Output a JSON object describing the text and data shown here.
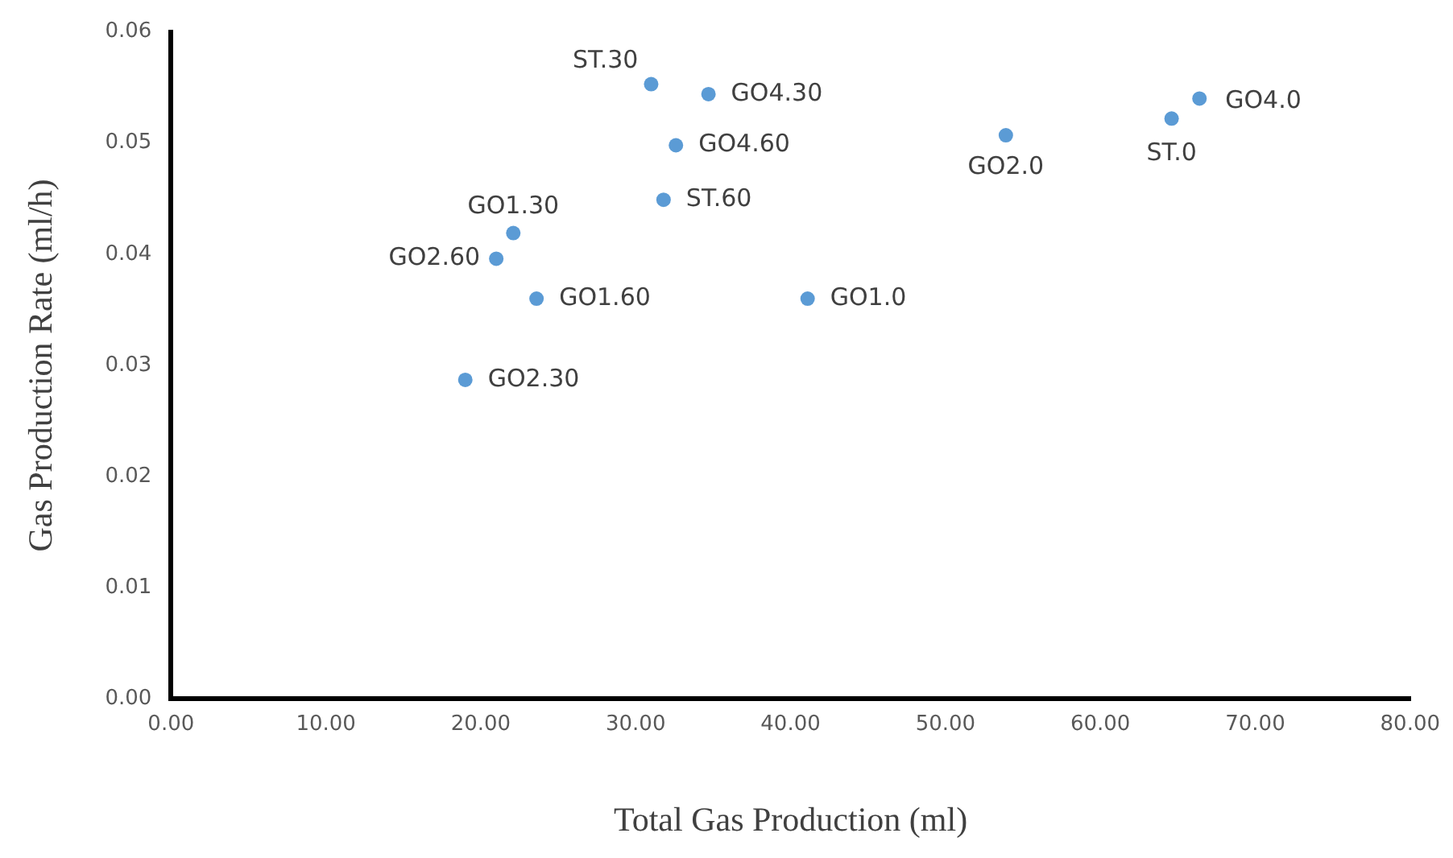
{
  "chart_data": {
    "type": "scatter",
    "xlabel": "Total Gas Production (ml)",
    "ylabel": "Gas Production Rate (ml/h)",
    "x": [
      31.0,
      34.7,
      32.6,
      31.8,
      22.1,
      21.0,
      23.6,
      19.0,
      41.1,
      53.9,
      64.6,
      66.4
    ],
    "series": [
      {
        "color": "#5b9bd5",
        "values": [
          0.0553,
          0.0544,
          0.0498,
          0.0449,
          0.0419,
          0.0396,
          0.036,
          0.0287,
          0.036,
          0.0507,
          0.0522,
          0.054
        ]
      }
    ],
    "xlim": [
      0,
      80
    ],
    "ylim": [
      0,
      0.06
    ],
    "xticks": [
      {
        "value": 0,
        "label": "0.00"
      },
      {
        "value": 10,
        "label": "10.00"
      },
      {
        "value": 20,
        "label": "20.00"
      },
      {
        "value": 30,
        "label": "30.00"
      },
      {
        "value": 40,
        "label": "40.00"
      },
      {
        "value": 50,
        "label": "50.00"
      },
      {
        "value": 60,
        "label": "60.00"
      },
      {
        "value": 70,
        "label": "70.00"
      },
      {
        "value": 80,
        "label": "80.00"
      }
    ],
    "yticks": [
      {
        "value": 0,
        "label": "0.00"
      },
      {
        "value": 0.01,
        "label": "0.01"
      },
      {
        "value": 0.02,
        "label": "0.02"
      },
      {
        "value": 0.03,
        "label": "0.03"
      },
      {
        "value": 0.04,
        "label": "0.04"
      },
      {
        "value": 0.05,
        "label": "0.05"
      },
      {
        "value": 0.06,
        "label": "0.06"
      }
    ],
    "annotations": [
      {
        "text": "ST.30",
        "x": 31.0,
        "y": 0.0553
      },
      {
        "text": "GO4.30",
        "x": 34.7,
        "y": 0.0544
      },
      {
        "text": "GO4.60",
        "x": 32.6,
        "y": 0.0498
      },
      {
        "text": "ST.60",
        "x": 31.8,
        "y": 0.0449
      },
      {
        "text": "GO1.30",
        "x": 22.1,
        "y": 0.0419
      },
      {
        "text": "GO2.60",
        "x": 21.0,
        "y": 0.0396
      },
      {
        "text": "GO1.60",
        "x": 23.6,
        "y": 0.036
      },
      {
        "text": "GO2.30",
        "x": 19.0,
        "y": 0.0287
      },
      {
        "text": "GO1.0",
        "x": 41.1,
        "y": 0.036
      },
      {
        "text": "GO2.0",
        "x": 53.9,
        "y": 0.0507
      },
      {
        "text": "ST.0",
        "x": 64.6,
        "y": 0.0522
      },
      {
        "text": "GO4.0",
        "x": 66.4,
        "y": 0.054
      }
    ],
    "grid": false,
    "legend": false,
    "marker": "circle"
  }
}
